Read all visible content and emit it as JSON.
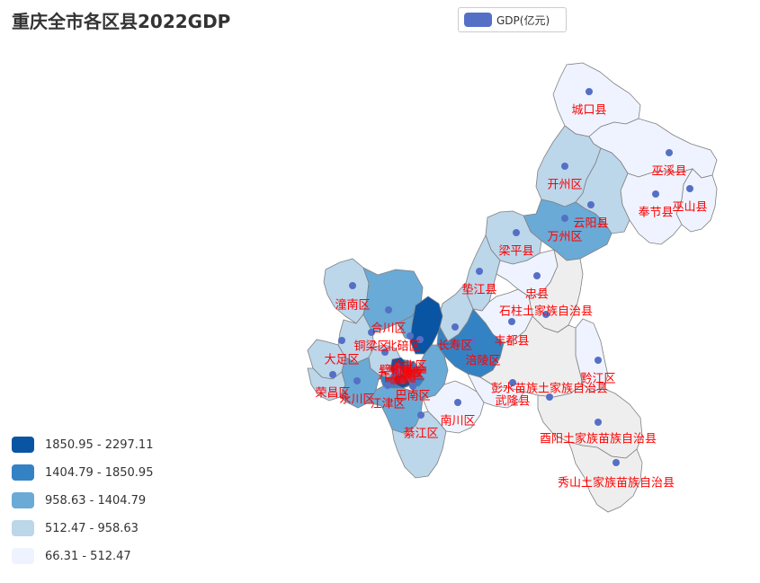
{
  "title": "重庆全市各区县2022GDP",
  "legend": {
    "series_name": "GDP(亿元)",
    "color": "#5470c6"
  },
  "visual_map": [
    {
      "label": "1850.95 - 2297.11",
      "color": "#0a55a3"
    },
    {
      "label": "1404.79 - 1850.95",
      "color": "#3383c4"
    },
    {
      "label": "958.63 - 1404.79",
      "color": "#6aaad6"
    },
    {
      "label": "512.47 - 958.63",
      "color": "#bcd6ea"
    },
    {
      "label": "66.31 - 512.47",
      "color": "#eef3ff"
    }
  ],
  "no_data_color": "#eeeeee",
  "marker_color": "#5470c6",
  "label_color": "#ff0000",
  "regions": [
    {
      "name": "城口县",
      "tier": 4
    },
    {
      "name": "巫溪县",
      "tier": 4
    },
    {
      "name": "开州区",
      "tier": 3
    },
    {
      "name": "巫山县",
      "tier": 4
    },
    {
      "name": "奉节县",
      "tier": 4
    },
    {
      "name": "云阳县",
      "tier": 3
    },
    {
      "name": "万州区",
      "tier": 2
    },
    {
      "name": "梁平县",
      "tier": 3
    },
    {
      "name": "垫江县",
      "tier": 3
    },
    {
      "name": "忠县",
      "tier": 4
    },
    {
      "name": "石柱土家族自治县",
      "tier": null
    },
    {
      "name": "潼南区",
      "tier": 3
    },
    {
      "name": "合川区",
      "tier": 2
    },
    {
      "name": "长寿区",
      "tier": 3
    },
    {
      "name": "铜梁区",
      "tier": 3
    },
    {
      "name": "北碚区",
      "tier": 2
    },
    {
      "name": "丰都县",
      "tier": 4
    },
    {
      "name": "涪陵区",
      "tier": 1
    },
    {
      "name": "大足区",
      "tier": 3
    },
    {
      "name": "璧山区",
      "tier": 3
    },
    {
      "name": "渝北区",
      "tier": 0
    },
    {
      "name": "黔江区",
      "tier": 4
    },
    {
      "name": "荣昌区",
      "tier": 3
    },
    {
      "name": "永川区",
      "tier": 2
    },
    {
      "name": "九龙坡区",
      "tier": 1
    },
    {
      "name": "巴南区",
      "tier": 2
    },
    {
      "name": "彭水苗族土家族自治县",
      "tier": null
    },
    {
      "name": "武隆县",
      "tier": 4
    },
    {
      "name": "江津区",
      "tier": 2
    },
    {
      "name": "南川区",
      "tier": 4
    },
    {
      "name": "綦江区",
      "tier": 3
    },
    {
      "name": "酉阳土家族苗族自治县",
      "tier": null
    },
    {
      "name": "秀山土家族苗族自治县",
      "tier": null
    }
  ]
}
